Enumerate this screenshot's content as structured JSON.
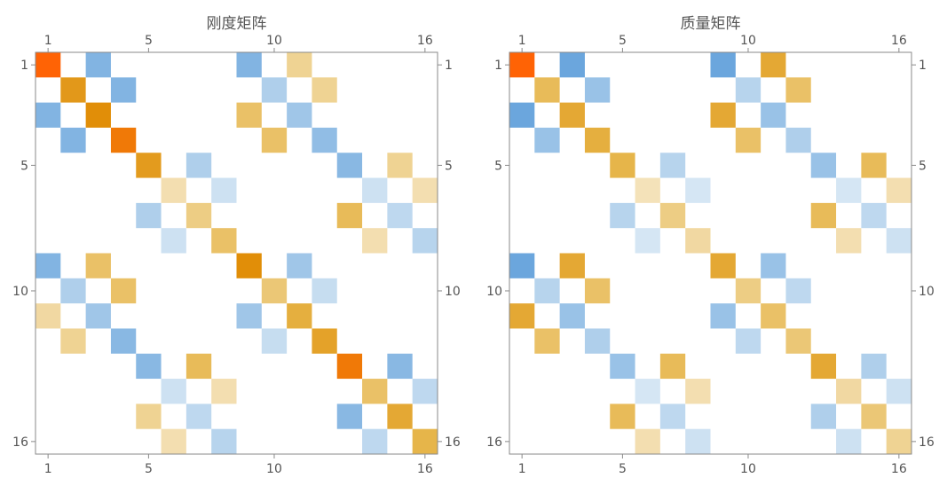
{
  "chart_data": [
    {
      "type": "heatmap",
      "title": "刚度矩阵",
      "size": 16,
      "tick_values": [
        1,
        5,
        10,
        16
      ],
      "ticks_top": [
        "1",
        "5",
        "10",
        "16"
      ],
      "ticks_bottom": [
        "1",
        "5",
        "10",
        "16"
      ],
      "ticks_left": [
        "1",
        "5",
        "10",
        "16"
      ],
      "ticks_right": [
        "1",
        "5",
        "10",
        "16"
      ],
      "color_scale": "orange = positive, blue = negative, white = zero",
      "cells": [
        [
          1,
          1,
          1.0
        ],
        [
          1,
          3,
          -0.65
        ],
        [
          1,
          9,
          -0.65
        ],
        [
          1,
          11,
          0.25
        ],
        [
          2,
          2,
          0.72
        ],
        [
          2,
          4,
          -0.65
        ],
        [
          2,
          10,
          -0.35
        ],
        [
          2,
          12,
          0.25
        ],
        [
          3,
          1,
          -0.65
        ],
        [
          3,
          3,
          0.8
        ],
        [
          3,
          9,
          0.4
        ],
        [
          3,
          11,
          -0.45
        ],
        [
          4,
          2,
          -0.65
        ],
        [
          4,
          4,
          0.9
        ],
        [
          4,
          10,
          0.4
        ],
        [
          4,
          12,
          -0.55
        ],
        [
          5,
          5,
          0.7
        ],
        [
          5,
          7,
          -0.35
        ],
        [
          5,
          13,
          -0.6
        ],
        [
          5,
          15,
          0.25
        ],
        [
          6,
          6,
          0.15
        ],
        [
          6,
          8,
          -0.15
        ],
        [
          6,
          14,
          -0.15
        ],
        [
          6,
          16,
          0.15
        ],
        [
          7,
          5,
          -0.35
        ],
        [
          7,
          7,
          0.3
        ],
        [
          7,
          13,
          0.45
        ],
        [
          7,
          15,
          -0.25
        ],
        [
          8,
          6,
          -0.15
        ],
        [
          8,
          8,
          0.4
        ],
        [
          8,
          14,
          0.15
        ],
        [
          8,
          16,
          -0.3
        ],
        [
          9,
          1,
          -0.65
        ],
        [
          9,
          3,
          0.4
        ],
        [
          9,
          9,
          0.8
        ],
        [
          9,
          11,
          -0.45
        ],
        [
          10,
          2,
          -0.35
        ],
        [
          10,
          4,
          0.4
        ],
        [
          10,
          10,
          0.35
        ],
        [
          10,
          12,
          -0.2
        ],
        [
          11,
          1,
          0.2
        ],
        [
          11,
          3,
          -0.45
        ],
        [
          11,
          9,
          -0.45
        ],
        [
          11,
          11,
          0.55
        ],
        [
          12,
          2,
          0.25
        ],
        [
          12,
          4,
          -0.6
        ],
        [
          12,
          10,
          -0.2
        ],
        [
          12,
          12,
          0.65
        ],
        [
          13,
          5,
          -0.6
        ],
        [
          13,
          7,
          0.45
        ],
        [
          13,
          13,
          0.9
        ],
        [
          13,
          15,
          -0.6
        ],
        [
          14,
          6,
          -0.15
        ],
        [
          14,
          8,
          0.15
        ],
        [
          14,
          14,
          0.4
        ],
        [
          14,
          16,
          -0.25
        ],
        [
          15,
          5,
          0.25
        ],
        [
          15,
          7,
          -0.25
        ],
        [
          15,
          13,
          -0.6
        ],
        [
          15,
          15,
          0.6
        ],
        [
          16,
          6,
          0.15
        ],
        [
          16,
          8,
          -0.3
        ],
        [
          16,
          14,
          -0.25
        ],
        [
          16,
          16,
          0.5
        ]
      ]
    },
    {
      "type": "heatmap",
      "title": "质量矩阵",
      "size": 16,
      "tick_values": [
        1,
        5,
        10,
        16
      ],
      "ticks_top": [
        "1",
        "5",
        "10",
        "16"
      ],
      "ticks_bottom": [
        "1",
        "5",
        "10",
        "16"
      ],
      "ticks_left": [
        "1",
        "5",
        "10",
        "16"
      ],
      "ticks_right": [
        "1",
        "5",
        "10",
        "16"
      ],
      "color_scale": "orange = positive, blue = negative, white = zero",
      "cells": [
        [
          1,
          1,
          1.0
        ],
        [
          1,
          3,
          -0.8
        ],
        [
          1,
          9,
          -0.8
        ],
        [
          1,
          11,
          0.6
        ],
        [
          2,
          2,
          0.45
        ],
        [
          2,
          4,
          -0.5
        ],
        [
          2,
          10,
          -0.3
        ],
        [
          2,
          12,
          0.4
        ],
        [
          3,
          1,
          -0.8
        ],
        [
          3,
          3,
          0.6
        ],
        [
          3,
          9,
          0.6
        ],
        [
          3,
          11,
          -0.5
        ],
        [
          4,
          2,
          -0.5
        ],
        [
          4,
          4,
          0.55
        ],
        [
          4,
          10,
          0.4
        ],
        [
          4,
          12,
          -0.35
        ],
        [
          5,
          5,
          0.5
        ],
        [
          5,
          7,
          -0.3
        ],
        [
          5,
          13,
          -0.5
        ],
        [
          5,
          15,
          0.45
        ],
        [
          6,
          6,
          0.12
        ],
        [
          6,
          8,
          -0.1
        ],
        [
          6,
          14,
          -0.1
        ],
        [
          6,
          16,
          0.15
        ],
        [
          7,
          5,
          -0.3
        ],
        [
          7,
          7,
          0.3
        ],
        [
          7,
          13,
          0.45
        ],
        [
          7,
          15,
          -0.25
        ],
        [
          8,
          6,
          -0.1
        ],
        [
          8,
          8,
          0.2
        ],
        [
          8,
          14,
          0.15
        ],
        [
          8,
          16,
          -0.15
        ],
        [
          9,
          1,
          -0.8
        ],
        [
          9,
          3,
          0.6
        ],
        [
          9,
          9,
          0.6
        ],
        [
          9,
          11,
          -0.5
        ],
        [
          10,
          2,
          -0.3
        ],
        [
          10,
          4,
          0.4
        ],
        [
          10,
          10,
          0.3
        ],
        [
          10,
          12,
          -0.25
        ],
        [
          11,
          1,
          0.6
        ],
        [
          11,
          3,
          -0.5
        ],
        [
          11,
          9,
          -0.5
        ],
        [
          11,
          11,
          0.4
        ],
        [
          12,
          2,
          0.4
        ],
        [
          12,
          4,
          -0.35
        ],
        [
          12,
          10,
          -0.25
        ],
        [
          12,
          12,
          0.35
        ],
        [
          13,
          5,
          -0.5
        ],
        [
          13,
          7,
          0.45
        ],
        [
          13,
          13,
          0.6
        ],
        [
          13,
          15,
          -0.35
        ],
        [
          14,
          6,
          -0.1
        ],
        [
          14,
          8,
          0.15
        ],
        [
          14,
          14,
          0.2
        ],
        [
          14,
          16,
          -0.15
        ],
        [
          15,
          5,
          0.45
        ],
        [
          15,
          7,
          -0.25
        ],
        [
          15,
          13,
          -0.35
        ],
        [
          15,
          15,
          0.35
        ],
        [
          16,
          6,
          0.15
        ],
        [
          16,
          8,
          -0.15
        ],
        [
          16,
          14,
          -0.15
        ],
        [
          16,
          16,
          0.25
        ]
      ]
    }
  ]
}
